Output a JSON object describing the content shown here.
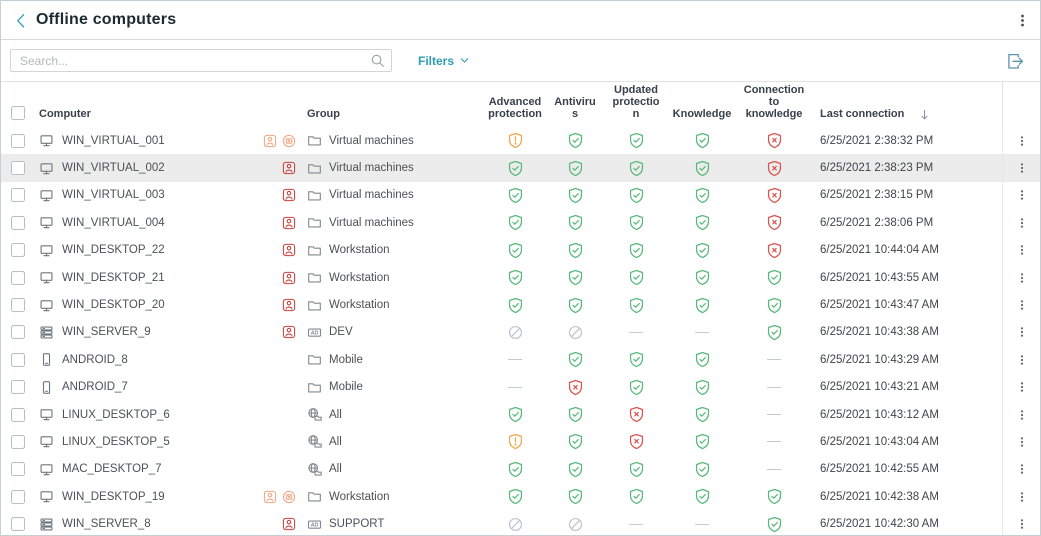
{
  "header": {
    "title": "Offline computers"
  },
  "toolbar": {
    "search_placeholder": "Search...",
    "filters_label": "Filters"
  },
  "table": {
    "columns": {
      "computer": "Computer",
      "group": "Group",
      "advanced_protection": "Advanced protection",
      "antivirus": "Antivirus",
      "updated_protection": "Updated protection",
      "knowledge": "Knowledge",
      "connection_to_knowledge": "Connection to knowledge",
      "last_connection": "Last connection"
    },
    "sort": {
      "column": "last_connection",
      "direction": "descending"
    },
    "rows": [
      {
        "name": "WIN_VIRTUAL_001",
        "device": "monitor",
        "badges": [
          "user-orange",
          "isolation-orange"
        ],
        "group_icon": "folder",
        "group": "Virtual machines",
        "statuses": [
          "warn",
          "ok",
          "ok",
          "ok",
          "error"
        ],
        "last_connection": "6/25/2021 2:38:32 PM",
        "highlighted": false
      },
      {
        "name": "WIN_VIRTUAL_002",
        "device": "monitor",
        "badges": [
          "user-red"
        ],
        "group_icon": "folder",
        "group": "Virtual machines",
        "statuses": [
          "ok",
          "ok",
          "ok",
          "ok",
          "error"
        ],
        "last_connection": "6/25/2021 2:38:23 PM",
        "highlighted": true
      },
      {
        "name": "WIN_VIRTUAL_003",
        "device": "monitor",
        "badges": [
          "user-red"
        ],
        "group_icon": "folder",
        "group": "Virtual machines",
        "statuses": [
          "ok",
          "ok",
          "ok",
          "ok",
          "error"
        ],
        "last_connection": "6/25/2021 2:38:15 PM",
        "highlighted": false
      },
      {
        "name": "WIN_VIRTUAL_004",
        "device": "monitor",
        "badges": [
          "user-red"
        ],
        "group_icon": "folder",
        "group": "Virtual machines",
        "statuses": [
          "ok",
          "ok",
          "ok",
          "ok",
          "error"
        ],
        "last_connection": "6/25/2021 2:38:06 PM",
        "highlighted": false
      },
      {
        "name": "WIN_DESKTOP_22",
        "device": "monitor",
        "badges": [
          "user-red"
        ],
        "group_icon": "folder",
        "group": "Workstation",
        "statuses": [
          "ok",
          "ok",
          "ok",
          "ok",
          "error"
        ],
        "last_connection": "6/25/2021 10:44:04 AM",
        "highlighted": false
      },
      {
        "name": "WIN_DESKTOP_21",
        "device": "monitor",
        "badges": [
          "user-red"
        ],
        "group_icon": "folder",
        "group": "Workstation",
        "statuses": [
          "ok",
          "ok",
          "ok",
          "ok",
          "ok"
        ],
        "last_connection": "6/25/2021 10:43:55 AM",
        "highlighted": false
      },
      {
        "name": "WIN_DESKTOP_20",
        "device": "monitor",
        "badges": [
          "user-red"
        ],
        "group_icon": "folder",
        "group": "Workstation",
        "statuses": [
          "ok",
          "ok",
          "ok",
          "ok",
          "ok"
        ],
        "last_connection": "6/25/2021 10:43:47 AM",
        "highlighted": false
      },
      {
        "name": "WIN_SERVER_9",
        "device": "server",
        "badges": [
          "user-red"
        ],
        "group_icon": "ad",
        "group": "DEV",
        "statuses": [
          "disabled",
          "disabled",
          "none",
          "none",
          "ok"
        ],
        "last_connection": "6/25/2021 10:43:38 AM",
        "highlighted": false
      },
      {
        "name": "ANDROID_8",
        "device": "phone",
        "badges": [],
        "group_icon": "folder",
        "group": "Mobile",
        "statuses": [
          "none",
          "ok",
          "ok",
          "ok",
          "none"
        ],
        "last_connection": "6/25/2021 10:43:29 AM",
        "highlighted": false
      },
      {
        "name": "ANDROID_7",
        "device": "phone",
        "badges": [],
        "group_icon": "folder",
        "group": "Mobile",
        "statuses": [
          "none",
          "error",
          "ok",
          "ok",
          "none"
        ],
        "last_connection": "6/25/2021 10:43:21 AM",
        "highlighted": false
      },
      {
        "name": "LINUX_DESKTOP_6",
        "device": "monitor",
        "badges": [],
        "group_icon": "globe",
        "group": "All",
        "statuses": [
          "ok",
          "ok",
          "error",
          "ok",
          "none"
        ],
        "last_connection": "6/25/2021 10:43:12 AM",
        "highlighted": false
      },
      {
        "name": "LINUX_DESKTOP_5",
        "device": "monitor",
        "badges": [],
        "group_icon": "globe",
        "group": "All",
        "statuses": [
          "warn",
          "ok",
          "error",
          "ok",
          "none"
        ],
        "last_connection": "6/25/2021 10:43:04 AM",
        "highlighted": false
      },
      {
        "name": "MAC_DESKTOP_7",
        "device": "monitor",
        "badges": [],
        "group_icon": "globe",
        "group": "All",
        "statuses": [
          "ok",
          "ok",
          "ok",
          "ok",
          "none"
        ],
        "last_connection": "6/25/2021 10:42:55 AM",
        "highlighted": false
      },
      {
        "name": "WIN_DESKTOP_19",
        "device": "monitor",
        "badges": [
          "user-orange",
          "isolation-orange"
        ],
        "group_icon": "folder",
        "group": "Workstation",
        "statuses": [
          "ok",
          "ok",
          "ok",
          "ok",
          "ok"
        ],
        "last_connection": "6/25/2021 10:42:38 AM",
        "highlighted": false
      },
      {
        "name": "WIN_SERVER_8",
        "device": "server",
        "badges": [
          "user-red"
        ],
        "group_icon": "ad",
        "group": "SUPPORT",
        "statuses": [
          "disabled",
          "disabled",
          "none",
          "none",
          "ok"
        ],
        "last_connection": "6/25/2021 10:42:30 AM",
        "highlighted": false
      }
    ]
  },
  "icons": {
    "back": "chevron-left",
    "page_menu": "kebab-vertical",
    "search": "magnifier",
    "filters_chevron": "chevron-down",
    "export": "export-arrow",
    "sort": "arrow-down",
    "device_monitor": "monitor",
    "device_server": "server-stack",
    "device_phone": "smartphone",
    "group_folder": "folder",
    "group_globe": "globe-folder",
    "group_ad": "active-directory-box",
    "badge_user": "user-card",
    "badge_isolation": "isolated-computer-circle",
    "status_ok": "shield-check",
    "status_warn": "shield-exclamation",
    "status_error": "shield-x",
    "status_disabled": "circle-slash",
    "status_none": "dash"
  },
  "colors": {
    "accent": "#2E9CB8",
    "ok": "#57B87B",
    "warn": "#EFA74C",
    "error": "#D9534F",
    "disabled": "#BCC4CF",
    "badge-red": "#C9403B",
    "badge-orange": "#F2A583",
    "highlight": "#ECECEC"
  }
}
